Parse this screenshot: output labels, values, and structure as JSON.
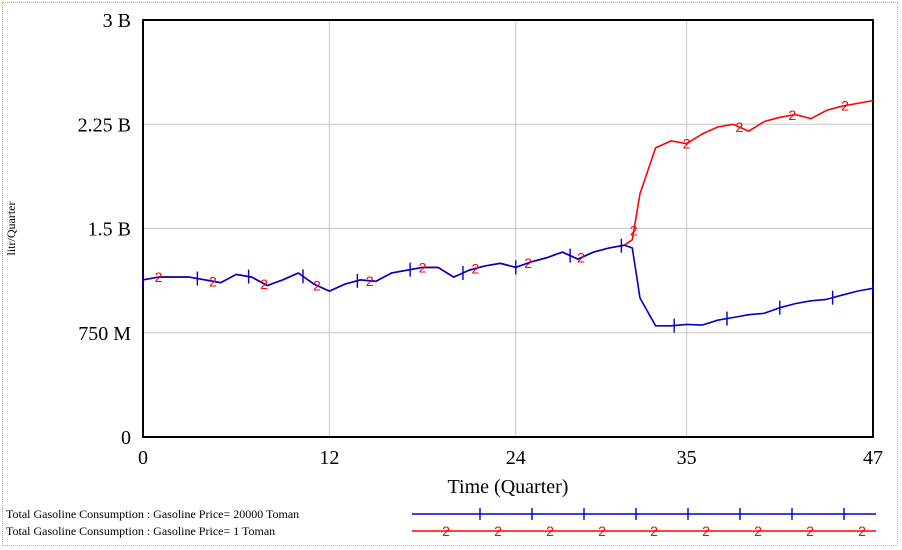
{
  "chart_data": {
    "type": "line",
    "title": "",
    "xlabel": "Time (Quarter)",
    "ylabel": "litr/Quarter",
    "xlim": [
      0,
      47
    ],
    "ylim": [
      0,
      3000000000
    ],
    "x_ticks": [
      0,
      12,
      24,
      35,
      47
    ],
    "x_tick_labels": [
      "0",
      "12",
      "24",
      "35",
      "47"
    ],
    "y_ticks": [
      0,
      750000000,
      1500000000,
      2250000000,
      3000000000
    ],
    "y_tick_labels": [
      "0",
      "750 M",
      "1.5 B",
      "2.25 B",
      "3 B"
    ],
    "grid": true,
    "legend_position": "bottom",
    "series": [
      {
        "name": "Total Gasoline Consumption : Gasoline Price= 20000 Toman",
        "marker": "1",
        "color": "#0000cc",
        "points": [
          [
            0,
            1130000000
          ],
          [
            1,
            1150000000
          ],
          [
            3,
            1150000000
          ],
          [
            5,
            1110000000
          ],
          [
            6,
            1170000000
          ],
          [
            7,
            1150000000
          ],
          [
            8,
            1090000000
          ],
          [
            9,
            1130000000
          ],
          [
            10,
            1180000000
          ],
          [
            11,
            1100000000
          ],
          [
            12,
            1050000000
          ],
          [
            13,
            1100000000
          ],
          [
            14,
            1130000000
          ],
          [
            15,
            1120000000
          ],
          [
            16,
            1180000000
          ],
          [
            17,
            1200000000
          ],
          [
            18,
            1220000000
          ],
          [
            19,
            1220000000
          ],
          [
            20,
            1150000000
          ],
          [
            21,
            1200000000
          ],
          [
            22,
            1230000000
          ],
          [
            23,
            1250000000
          ],
          [
            24,
            1220000000
          ],
          [
            25,
            1260000000
          ],
          [
            26,
            1290000000
          ],
          [
            27,
            1330000000
          ],
          [
            28,
            1280000000
          ],
          [
            29,
            1330000000
          ],
          [
            30,
            1360000000
          ],
          [
            31,
            1380000000
          ],
          [
            31.5,
            1360000000
          ],
          [
            32,
            1000000000
          ],
          [
            33,
            800000000
          ],
          [
            34,
            800000000
          ],
          [
            35,
            810000000
          ],
          [
            36,
            805000000
          ],
          [
            37,
            840000000
          ],
          [
            38,
            860000000
          ],
          [
            39,
            880000000
          ],
          [
            40,
            890000000
          ],
          [
            41,
            930000000
          ],
          [
            42,
            960000000
          ],
          [
            43,
            980000000
          ],
          [
            44,
            990000000
          ],
          [
            45,
            1020000000
          ],
          [
            46,
            1050000000
          ],
          [
            47,
            1070000000
          ]
        ]
      },
      {
        "name": "Total Gasoline Consumption : Gasoline Price= 1 Toman",
        "marker": "2",
        "color": "#ff0000",
        "points": [
          [
            0,
            1130000000
          ],
          [
            1,
            1150000000
          ],
          [
            3,
            1150000000
          ],
          [
            5,
            1110000000
          ],
          [
            6,
            1170000000
          ],
          [
            7,
            1150000000
          ],
          [
            8,
            1090000000
          ],
          [
            9,
            1130000000
          ],
          [
            10,
            1180000000
          ],
          [
            11,
            1100000000
          ],
          [
            12,
            1050000000
          ],
          [
            13,
            1100000000
          ],
          [
            14,
            1130000000
          ],
          [
            15,
            1120000000
          ],
          [
            16,
            1180000000
          ],
          [
            17,
            1200000000
          ],
          [
            18,
            1220000000
          ],
          [
            19,
            1220000000
          ],
          [
            20,
            1150000000
          ],
          [
            21,
            1200000000
          ],
          [
            22,
            1230000000
          ],
          [
            23,
            1250000000
          ],
          [
            24,
            1220000000
          ],
          [
            25,
            1260000000
          ],
          [
            26,
            1290000000
          ],
          [
            27,
            1330000000
          ],
          [
            28,
            1280000000
          ],
          [
            29,
            1330000000
          ],
          [
            30,
            1360000000
          ],
          [
            31,
            1380000000
          ],
          [
            31.5,
            1420000000
          ],
          [
            32,
            1750000000
          ],
          [
            33,
            2080000000
          ],
          [
            34,
            2130000000
          ],
          [
            35,
            2110000000
          ],
          [
            36,
            2180000000
          ],
          [
            37,
            2230000000
          ],
          [
            38,
            2250000000
          ],
          [
            39,
            2200000000
          ],
          [
            40,
            2270000000
          ],
          [
            41,
            2300000000
          ],
          [
            42,
            2320000000
          ],
          [
            43,
            2290000000
          ],
          [
            44,
            2350000000
          ],
          [
            45,
            2380000000
          ],
          [
            46,
            2400000000
          ],
          [
            47,
            2420000000
          ]
        ]
      }
    ],
    "legend_markers": {
      "series1": [
        "1",
        "1",
        "1",
        "1",
        "1",
        "1",
        "1",
        "1"
      ],
      "series2": [
        "2",
        "2",
        "2",
        "2",
        "2",
        "2",
        "2",
        "2",
        "2"
      ]
    }
  }
}
